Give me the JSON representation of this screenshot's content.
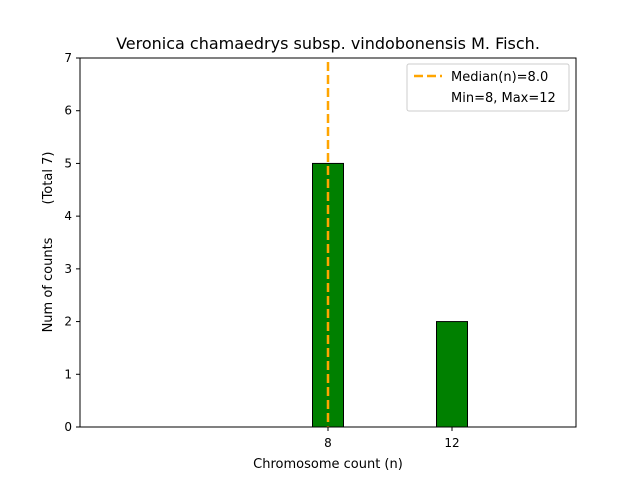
{
  "chart_data": {
    "type": "bar",
    "title": "Veronica chamaedrys subsp. vindobonensis M. Fisch.",
    "xlabel": "Chromosome count (n)",
    "ylabel": "Num of counts        (Total 7)",
    "xlim": [
      0,
      16
    ],
    "ylim": [
      0,
      7
    ],
    "xticks": [
      8,
      12
    ],
    "yticks": [
      0,
      1,
      2,
      3,
      4,
      5,
      6,
      7
    ],
    "bar_width": 1,
    "bars": [
      {
        "x": 8,
        "count": 5
      },
      {
        "x": 12,
        "count": 2
      }
    ],
    "bar_color": "#008000",
    "bar_edge_color": "#000000",
    "median": 8.0,
    "median_color": "#FFA500",
    "legend": {
      "placement": "top-right",
      "entries": [
        "Median(n)=8.0",
        "Min=8, Max=12"
      ]
    }
  }
}
